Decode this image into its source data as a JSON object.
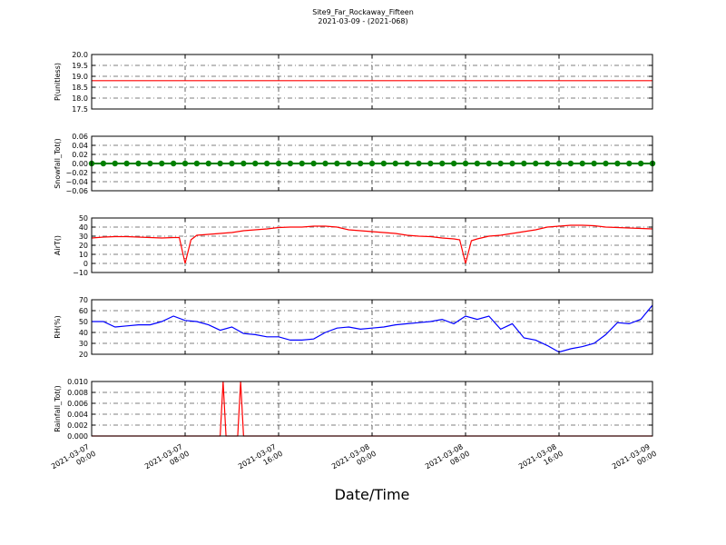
{
  "chart_data": [
    {
      "type": "line",
      "title": "Site9_Far_Rockaway_Fifteen",
      "subtitle": "2021-03-09 - (2021-068)",
      "ylabel": "P(unitless)",
      "ylim": [
        17.5,
        20.0
      ],
      "yticks": [
        17.5,
        {
          "value": 18,
          "label": "18.0"
        },
        18.5,
        {
          "value": 19,
          "label": "19.0"
        },
        19.5,
        {
          "value": 20,
          "label": "20.0"
        }
      ],
      "x": [
        "2021-03-07 00:00",
        "2021-03-09 00:00"
      ],
      "series": [
        {
          "color": "#ff0000",
          "values": [
            18.8,
            18.8
          ]
        }
      ]
    },
    {
      "type": "line",
      "marker": true,
      "ylabel": "Snowfall_Tot()",
      "ylim": [
        -0.06,
        0.06
      ],
      "yticks": [
        {
          "value": -0.06,
          "label": "−0.06"
        },
        {
          "value": -0.04,
          "label": "−0.04"
        },
        {
          "value": -0.02,
          "label": "−0.02"
        },
        {
          "value": 0,
          "label": "0.00"
        },
        0.02,
        0.04,
        0.06
      ],
      "x": [
        "2021-03-07 00:00",
        "2021-03-07 01:00",
        "2021-03-07 02:00",
        "2021-03-07 03:00",
        "2021-03-07 04:00",
        "2021-03-07 05:00",
        "2021-03-07 06:00",
        "2021-03-07 07:00",
        "2021-03-07 08:00",
        "2021-03-07 09:00",
        "2021-03-07 10:00",
        "2021-03-07 11:00",
        "2021-03-07 12:00",
        "2021-03-07 13:00",
        "2021-03-07 14:00",
        "2021-03-07 15:00",
        "2021-03-07 16:00",
        "2021-03-07 17:00",
        "2021-03-07 18:00",
        "2021-03-07 19:00",
        "2021-03-07 20:00",
        "2021-03-07 21:00",
        "2021-03-07 22:00",
        "2021-03-07 23:00",
        "2021-03-08 00:00",
        "2021-03-08 01:00",
        "2021-03-08 02:00",
        "2021-03-08 03:00",
        "2021-03-08 04:00",
        "2021-03-08 05:00",
        "2021-03-08 06:00",
        "2021-03-08 07:00",
        "2021-03-08 08:00",
        "2021-03-08 09:00",
        "2021-03-08 10:00",
        "2021-03-08 11:00",
        "2021-03-08 12:00",
        "2021-03-08 13:00",
        "2021-03-08 14:00",
        "2021-03-08 15:00",
        "2021-03-08 16:00",
        "2021-03-08 17:00",
        "2021-03-08 18:00",
        "2021-03-08 19:00",
        "2021-03-08 20:00",
        "2021-03-08 21:00",
        "2021-03-08 22:00",
        "2021-03-08 23:00",
        "2021-03-09 00:00"
      ],
      "series": [
        {
          "color": "#008000",
          "values": [
            0,
            0,
            0,
            0,
            0,
            0,
            0,
            0,
            0,
            0,
            0,
            0,
            0,
            0,
            0,
            0,
            0,
            0,
            0,
            0,
            0,
            0,
            0,
            0,
            0,
            0,
            0,
            0,
            0,
            0,
            0,
            0,
            0,
            0,
            0,
            0,
            0,
            0,
            0,
            0,
            0,
            0,
            0,
            0,
            0,
            0,
            0,
            0,
            0
          ]
        }
      ]
    },
    {
      "type": "line",
      "ylabel": "AirT()",
      "ylim": [
        -10,
        50
      ],
      "yticks": [
        {
          "value": -10,
          "label": "−10"
        },
        0,
        10,
        20,
        30,
        40,
        50
      ],
      "x": [
        "2021-03-07 00:00",
        "2021-03-07 01:00",
        "2021-03-07 02:00",
        "2021-03-07 03:00",
        "2021-03-07 04:00",
        "2021-03-07 05:00",
        "2021-03-07 06:00",
        "2021-03-07 07:00",
        "2021-03-07 07:30",
        "2021-03-07 08:00",
        "2021-03-07 08:30",
        "2021-03-07 09:00",
        "2021-03-07 10:00",
        "2021-03-07 11:00",
        "2021-03-07 12:00",
        "2021-03-07 13:00",
        "2021-03-07 14:00",
        "2021-03-07 15:00",
        "2021-03-07 16:00",
        "2021-03-07 17:00",
        "2021-03-07 18:00",
        "2021-03-07 19:00",
        "2021-03-07 20:00",
        "2021-03-07 21:00",
        "2021-03-07 22:00",
        "2021-03-07 23:00",
        "2021-03-08 00:00",
        "2021-03-08 01:00",
        "2021-03-08 02:00",
        "2021-03-08 03:00",
        "2021-03-08 04:00",
        "2021-03-08 05:00",
        "2021-03-08 06:00",
        "2021-03-08 07:00",
        "2021-03-08 07:30",
        "2021-03-08 08:00",
        "2021-03-08 08:30",
        "2021-03-08 09:00",
        "2021-03-08 10:00",
        "2021-03-08 11:00",
        "2021-03-08 12:00",
        "2021-03-08 13:00",
        "2021-03-08 14:00",
        "2021-03-08 15:00",
        "2021-03-08 16:00",
        "2021-03-08 17:00",
        "2021-03-08 18:00",
        "2021-03-08 19:00",
        "2021-03-08 20:00",
        "2021-03-08 21:00",
        "2021-03-08 22:00",
        "2021-03-08 23:00",
        "2021-03-09 00:00"
      ],
      "series": [
        {
          "color": "#ff0000",
          "values": [
            28,
            29,
            29.5,
            29.5,
            29,
            28.5,
            28,
            28.5,
            28.5,
            0,
            26,
            31,
            32,
            33,
            34,
            36,
            37,
            38,
            39.5,
            40,
            40,
            41,
            41,
            40,
            37,
            36,
            35,
            34,
            33,
            31,
            30,
            29.5,
            28,
            27,
            26,
            0,
            25,
            27,
            30,
            31,
            33,
            35,
            37,
            40,
            41,
            42,
            42,
            41.5,
            40,
            39.5,
            39,
            38.5,
            38
          ]
        }
      ]
    },
    {
      "type": "line",
      "ylabel": "RH(%)",
      "ylim": [
        20,
        70
      ],
      "yticks": [
        20,
        30,
        40,
        50,
        60,
        70
      ],
      "x": [
        "2021-03-07 00:00",
        "2021-03-07 01:00",
        "2021-03-07 02:00",
        "2021-03-07 03:00",
        "2021-03-07 04:00",
        "2021-03-07 05:00",
        "2021-03-07 06:00",
        "2021-03-07 07:00",
        "2021-03-07 08:00",
        "2021-03-07 09:00",
        "2021-03-07 10:00",
        "2021-03-07 11:00",
        "2021-03-07 12:00",
        "2021-03-07 13:00",
        "2021-03-07 14:00",
        "2021-03-07 15:00",
        "2021-03-07 16:00",
        "2021-03-07 17:00",
        "2021-03-07 18:00",
        "2021-03-07 19:00",
        "2021-03-07 20:00",
        "2021-03-07 21:00",
        "2021-03-07 22:00",
        "2021-03-07 23:00",
        "2021-03-08 00:00",
        "2021-03-08 01:00",
        "2021-03-08 02:00",
        "2021-03-08 03:00",
        "2021-03-08 04:00",
        "2021-03-08 05:00",
        "2021-03-08 06:00",
        "2021-03-08 07:00",
        "2021-03-08 08:00",
        "2021-03-08 09:00",
        "2021-03-08 10:00",
        "2021-03-08 11:00",
        "2021-03-08 12:00",
        "2021-03-08 13:00",
        "2021-03-08 14:00",
        "2021-03-08 15:00",
        "2021-03-08 16:00",
        "2021-03-08 17:00",
        "2021-03-08 18:00",
        "2021-03-08 19:00",
        "2021-03-08 20:00",
        "2021-03-08 21:00",
        "2021-03-08 22:00",
        "2021-03-08 23:00",
        "2021-03-09 00:00"
      ],
      "series": [
        {
          "color": "#0000ff",
          "values": [
            50,
            50,
            45,
            46,
            47,
            47,
            50,
            55,
            51,
            50,
            47,
            42,
            45,
            39,
            38,
            36,
            36,
            33,
            33,
            34,
            40,
            44,
            45,
            43,
            44,
            45,
            47,
            48,
            49,
            50,
            52,
            48,
            55,
            52,
            55,
            43,
            48,
            35,
            33,
            28,
            22,
            25,
            27,
            30,
            38,
            49,
            48,
            52,
            65
          ]
        }
      ]
    },
    {
      "type": "line",
      "ylabel": "Rainfall_Tot()",
      "xlabel": "Date/Time",
      "xlim": [
        "2021-03-07 00:00",
        "2021-03-09 00:00"
      ],
      "xticks": [
        "2021-03-07 00:00",
        "2021-03-07 08:00",
        "2021-03-07 16:00",
        "2021-03-08 00:00",
        "2021-03-08 08:00",
        "2021-03-08 16:00",
        "2021-03-09 00:00"
      ],
      "ylim": [
        0,
        0.01
      ],
      "yticks": [
        {
          "value": 0,
          "label": "0.000"
        },
        {
          "value": 0.002,
          "label": "0.002"
        },
        {
          "value": 0.004,
          "label": "0.004"
        },
        {
          "value": 0.006,
          "label": "0.006"
        },
        {
          "value": 0.008,
          "label": "0.008"
        },
        {
          "value": 0.01,
          "label": "0.010"
        }
      ],
      "x": [
        "2021-03-07 00:00",
        "2021-03-07 11:00",
        "2021-03-07 11:15",
        "2021-03-07 11:30",
        "2021-03-07 12:30",
        "2021-03-07 12:45",
        "2021-03-07 13:00",
        "2021-03-09 00:00"
      ],
      "series": [
        {
          "color": "#ff0000",
          "values": [
            0,
            0,
            0.01,
            0,
            0,
            0.01,
            0,
            0
          ]
        }
      ]
    }
  ]
}
